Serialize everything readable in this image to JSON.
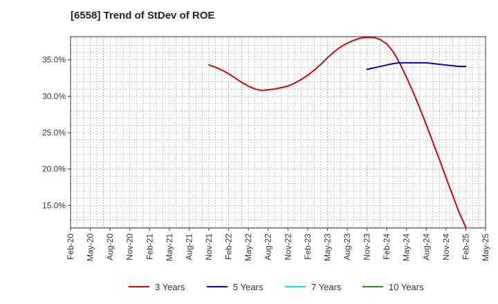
{
  "chart_data": {
    "type": "line",
    "title": "[6558]  Trend of StDev of ROE",
    "xlabel": "",
    "ylabel": "",
    "x_tick_labels": [
      "Feb-20",
      "May-20",
      "Aug-20",
      "Nov-20",
      "Feb-21",
      "May-21",
      "Aug-21",
      "Nov-21",
      "Feb-22",
      "May-22",
      "Aug-22",
      "Nov-22",
      "Feb-23",
      "May-23",
      "Aug-23",
      "Nov-23",
      "Feb-24",
      "May-24",
      "Aug-24",
      "Nov-24",
      "Feb-25",
      "May-25"
    ],
    "y_tick_labels": [
      "15.0%",
      "20.0%",
      "25.0%",
      "30.0%",
      "35.0%"
    ],
    "y_ticks": [
      15,
      20,
      25,
      30,
      35
    ],
    "ylim": [
      11.9,
      38.2
    ],
    "grid": true,
    "legend_position": "bottom",
    "series": [
      {
        "name": "3 Years",
        "color": "#dd0000",
        "points": [
          [
            "Nov-21",
            34.3
          ],
          [
            "Dec-21",
            34.0
          ],
          [
            "Jan-22",
            33.6
          ],
          [
            "Feb-22",
            33.1
          ],
          [
            "Mar-22",
            32.5
          ],
          [
            "Apr-22",
            31.9
          ],
          [
            "May-22",
            31.4
          ],
          [
            "Jun-22",
            31.0
          ],
          [
            "Jul-22",
            30.8
          ],
          [
            "Aug-22",
            30.9
          ],
          [
            "Sep-22",
            31.0
          ],
          [
            "Oct-22",
            31.2
          ],
          [
            "Nov-22",
            31.4
          ],
          [
            "Dec-22",
            31.8
          ],
          [
            "Jan-23",
            32.3
          ],
          [
            "Feb-23",
            32.9
          ],
          [
            "Mar-23",
            33.6
          ],
          [
            "Apr-23",
            34.4
          ],
          [
            "May-23",
            35.3
          ],
          [
            "Jun-23",
            36.1
          ],
          [
            "Jul-23",
            36.8
          ],
          [
            "Aug-23",
            37.3
          ],
          [
            "Sep-23",
            37.7
          ],
          [
            "Oct-23",
            38.0
          ],
          [
            "Nov-23",
            38.1
          ],
          [
            "Dec-23",
            38.1
          ],
          [
            "Jan-24",
            37.8
          ],
          [
            "Feb-24",
            37.2
          ],
          [
            "Mar-24",
            36.1
          ],
          [
            "Apr-24",
            34.5
          ],
          [
            "May-24",
            32.6
          ],
          [
            "Jun-24",
            30.6
          ],
          [
            "Jul-24",
            28.4
          ],
          [
            "Aug-24",
            26.1
          ],
          [
            "Sep-24",
            23.7
          ],
          [
            "Oct-24",
            21.3
          ],
          [
            "Nov-24",
            18.8
          ],
          [
            "Dec-24",
            16.4
          ],
          [
            "Jan-25",
            14.0
          ],
          [
            "Feb-25",
            12.0
          ]
        ]
      },
      {
        "name": "5 Years",
        "color": "#0000cc",
        "points": [
          [
            "Nov-23",
            33.7
          ],
          [
            "Dec-23",
            33.9
          ],
          [
            "Jan-24",
            34.1
          ],
          [
            "Feb-24",
            34.3
          ],
          [
            "Mar-24",
            34.5
          ],
          [
            "Apr-24",
            34.6
          ],
          [
            "May-24",
            34.6
          ],
          [
            "Jun-24",
            34.6
          ],
          [
            "Jul-24",
            34.6
          ],
          [
            "Aug-24",
            34.6
          ],
          [
            "Sep-24",
            34.5
          ],
          [
            "Oct-24",
            34.4
          ],
          [
            "Nov-24",
            34.3
          ],
          [
            "Dec-24",
            34.2
          ],
          [
            "Jan-25",
            34.1
          ],
          [
            "Feb-25",
            34.1
          ]
        ]
      },
      {
        "name": "7 Years",
        "color": "#00e5ee",
        "points": []
      },
      {
        "name": "10 Years",
        "color": "#228b22",
        "points": []
      }
    ]
  }
}
